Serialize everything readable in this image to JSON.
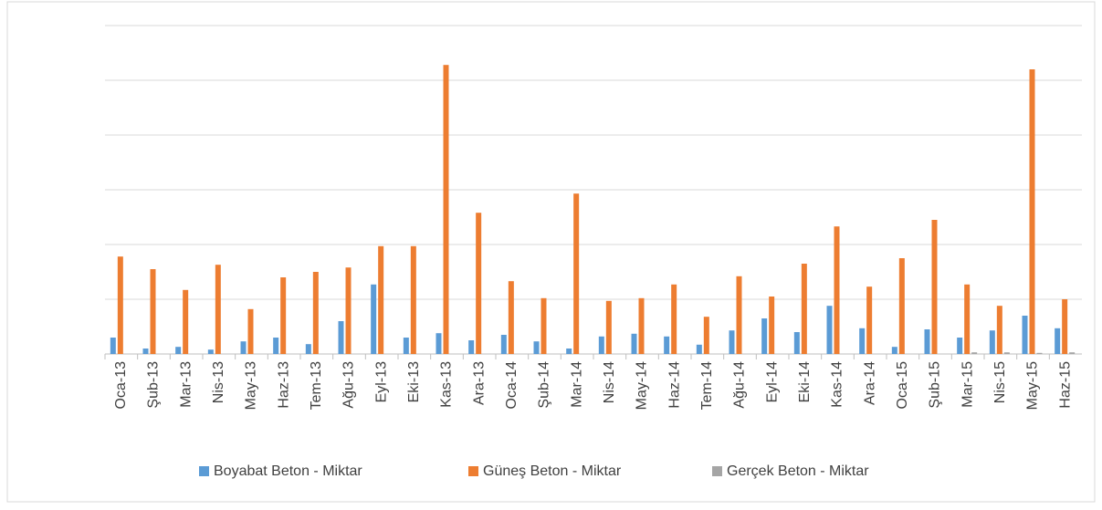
{
  "chart_data": {
    "type": "bar",
    "categories": [
      "Oca-13",
      "Şub-13",
      "Mar-13",
      "Nis-13",
      "May-13",
      "Haz-13",
      "Tem-13",
      "Ağu-13",
      "Eyl-13",
      "Eki-13",
      "Kas-13",
      "Ara-13",
      "Oca-14",
      "Şub-14",
      "Mar-14",
      "Nis-14",
      "May-14",
      "Haz-14",
      "Tem-14",
      "Ağu-14",
      "Eyl-14",
      "Eki-14",
      "Kas-14",
      "Ara-14",
      "Oca-15",
      "Şub-15",
      "Mar-15",
      "Nis-15",
      "May-15",
      "Haz-15"
    ],
    "series": [
      {
        "name": "Boyabat Beton - Miktar",
        "color": "#5b9bd5",
        "values": [
          0.3,
          0.1,
          0.13,
          0.08,
          0.23,
          0.3,
          0.18,
          0.6,
          1.27,
          0.3,
          0.38,
          0.25,
          0.35,
          0.23,
          0.1,
          0.32,
          0.37,
          0.32,
          0.17,
          0.43,
          0.65,
          0.4,
          0.88,
          0.47,
          0.13,
          0.45,
          0.3,
          0.43,
          0.7,
          0.47
        ]
      },
      {
        "name": "Güneş Beton - Miktar",
        "color": "#ed7d31",
        "values": [
          1.78,
          1.55,
          1.17,
          1.63,
          0.82,
          1.4,
          1.5,
          1.58,
          1.97,
          1.97,
          5.28,
          2.58,
          1.33,
          1.02,
          2.93,
          0.97,
          1.02,
          1.27,
          0.68,
          1.42,
          1.05,
          1.65,
          2.33,
          1.23,
          1.75,
          2.45,
          1.27,
          0.88,
          5.2,
          1.0
        ]
      },
      {
        "name": "Gerçek Beton - Miktar",
        "color": "#a5a5a5",
        "values": [
          0,
          0,
          0,
          0,
          0,
          0,
          0,
          0,
          0,
          0,
          0,
          0,
          0,
          0,
          0,
          0,
          0,
          0,
          0,
          0,
          0,
          0,
          0,
          0,
          0,
          0,
          0.03,
          0.03,
          0.02,
          0.03
        ]
      }
    ],
    "ylim": [
      0,
      6
    ],
    "yticks": [
      0,
      1,
      2,
      3,
      4,
      5,
      6
    ],
    "grid": true
  }
}
